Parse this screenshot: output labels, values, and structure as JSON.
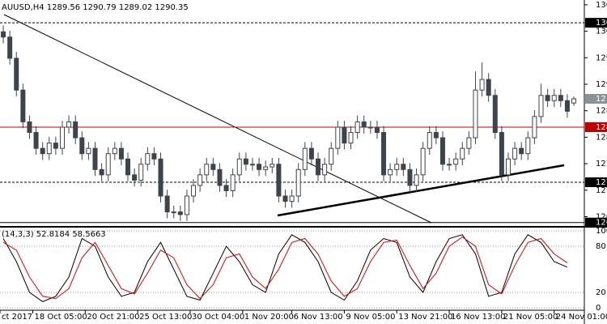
{
  "chart_data": {
    "type": "candlestick",
    "title": "AUUSD,H4  1289.56 1290.79 1289.02 1290.35",
    "open": [
      1303,
      1302,
      1298,
      1292,
      1286,
      1284,
      1281,
      1280,
      1282,
      1281,
      1285,
      1286,
      1283,
      1280,
      1281,
      1277,
      1276,
      1280,
      1281,
      1279,
      1276,
      1275,
      1278,
      1280,
      1279,
      1272,
      1269,
      1269,
      1268.5,
      1272,
      1274,
      1276,
      1278,
      1277,
      1274,
      1273,
      1276,
      1279,
      1278,
      1278,
      1277,
      1277.5,
      1278,
      1272,
      1271,
      1272,
      1277,
      1281,
      1279,
      1276,
      1278,
      1281,
      1285,
      1282,
      1284,
      1286,
      1285,
      1285,
      1284,
      1276,
      1277,
      1278,
      1277,
      1274,
      1276,
      1281,
      1284,
      1283,
      1278,
      1278,
      1279,
      1281,
      1283,
      1292,
      1294,
      1291,
      1284,
      1276,
      1279,
      1281,
      1280,
      1283,
      1287,
      1291,
      1290,
      1291,
      1290,
      1289.56
    ],
    "high": [
      1304.2,
      1303.2,
      1299.2,
      1293.2,
      1287.2,
      1285.2,
      1282.2,
      1283.2,
      1283.2,
      1286.2,
      1287.2,
      1287.2,
      1284.2,
      1282.2,
      1282.2,
      1278.2,
      1281.2,
      1282.2,
      1282.2,
      1280.2,
      1277.2,
      1279.2,
      1281.2,
      1281.2,
      1280.2,
      1273.2,
      1270.2,
      1270.2,
      1273.2,
      1275.2,
      1277.2,
      1279.2,
      1279.2,
      1278.2,
      1275.2,
      1277.2,
      1280.2,
      1280.2,
      1279.2,
      1279.2,
      1278.7,
      1279.2,
      1279.2,
      1273.2,
      1273.2,
      1278.2,
      1282.2,
      1282.2,
      1280.2,
      1279.2,
      1282.2,
      1286.2,
      1286.2,
      1285.2,
      1287.2,
      1287.2,
      1286.2,
      1286.2,
      1285.2,
      1278.2,
      1279.2,
      1279.2,
      1278.2,
      1277.2,
      1282.2,
      1285.2,
      1285.2,
      1284.2,
      1279.2,
      1280.2,
      1282.2,
      1284.2,
      1295.5,
      1297.2,
      1295.2,
      1292.2,
      1285.2,
      1280.2,
      1282.2,
      1282.2,
      1284.2,
      1288.2,
      1293.2,
      1292.2,
      1292.2,
      1292.2,
      1291.2,
      1290.79
    ],
    "low": [
      1300.8,
      1296.8,
      1290.8,
      1284.8,
      1282.8,
      1279.8,
      1278.8,
      1278.8,
      1279.8,
      1279.8,
      1283.8,
      1281.8,
      1278.8,
      1278.8,
      1275.8,
      1274.8,
      1274.8,
      1278.8,
      1277.8,
      1274.8,
      1273.8,
      1273.8,
      1276.8,
      1277.8,
      1270.8,
      1267.8,
      1267.8,
      1267.3,
      1267.3,
      1270.8,
      1272.8,
      1274.8,
      1275.8,
      1272.8,
      1271.8,
      1271.8,
      1274.8,
      1276.8,
      1276.8,
      1275.8,
      1275.8,
      1276.3,
      1270.8,
      1269.8,
      1269.8,
      1270.8,
      1275.8,
      1277.8,
      1274.8,
      1274.8,
      1276.8,
      1279.8,
      1280.8,
      1280.8,
      1282.8,
      1283.8,
      1283.8,
      1282.8,
      1274.8,
      1274.8,
      1275.8,
      1275.8,
      1272.8,
      1272.8,
      1274.8,
      1279.8,
      1281.8,
      1276.8,
      1276.8,
      1276.8,
      1277.8,
      1279.8,
      1281.8,
      1290.8,
      1289.8,
      1282.8,
      1274.8,
      1274.8,
      1277.8,
      1278.8,
      1278.8,
      1281.8,
      1285.8,
      1288.8,
      1288.8,
      1288.8,
      1286.8,
      1289.02
    ],
    "close": [
      1302,
      1298,
      1292,
      1286,
      1284,
      1281,
      1280,
      1282,
      1281,
      1285,
      1286,
      1283,
      1280,
      1281,
      1277,
      1276,
      1280,
      1281,
      1279,
      1276,
      1275,
      1278,
      1280,
      1279,
      1272,
      1269,
      1269,
      1268.5,
      1272,
      1274,
      1276,
      1278,
      1277,
      1274,
      1273,
      1276,
      1279,
      1278,
      1278,
      1277,
      1277.5,
      1278,
      1272,
      1271,
      1272,
      1277,
      1281,
      1279,
      1276,
      1278,
      1281,
      1285,
      1282,
      1284,
      1286,
      1285,
      1285,
      1284,
      1276,
      1277,
      1278,
      1277,
      1274,
      1276,
      1281,
      1284,
      1283,
      1278,
      1278,
      1279,
      1281,
      1283,
      1292,
      1294,
      1291,
      1284,
      1276,
      1279,
      1281,
      1280,
      1283,
      1287,
      1291,
      1290,
      1291,
      1290,
      1288,
      1290.35
    ],
    "up_color": "#ffffff",
    "down_color": "#3d444b",
    "xlim": [
      -0.5,
      88.6
    ],
    "xticks": [
      {
        "value": -0.5,
        "label": "ct 2017"
      },
      {
        "value": 4.5,
        "label": "18 Oct 05:00"
      },
      {
        "value": 12.5,
        "label": "20 Oct 21:00"
      },
      {
        "value": 20.5,
        "label": "25 Oct 13:00"
      },
      {
        "value": 28.5,
        "label": "30 Oct 04:00"
      },
      {
        "value": 36.5,
        "label": "1 Nov 20:00"
      },
      {
        "value": 44,
        "label": "6 Nov 13:00"
      },
      {
        "value": 52,
        "label": "9 Nov 05:00"
      },
      {
        "value": 60,
        "label": "13 Nov 21:00"
      },
      {
        "value": 68,
        "label": "16 Nov 13:00"
      },
      {
        "value": 76,
        "label": "21 Nov 05:00"
      },
      {
        "value": 84,
        "label": "24 Nov 01:00"
      }
    ],
    "ylim": [
      1266.5,
      1309.0
    ],
    "yticks": [
      {
        "value": 1308.1,
        "label": "130"
      },
      {
        "value": 1303.1,
        "label": "130"
      },
      {
        "value": 1298.1,
        "label": "129"
      },
      {
        "value": 1293.1,
        "label": "129"
      },
      {
        "value": 1288.1,
        "label": "128"
      },
      {
        "value": 1283.1,
        "label": "128"
      },
      {
        "value": 1278.1,
        "label": "127"
      },
      {
        "value": 1273.1,
        "label": "127"
      },
      {
        "value": 1268.1,
        "label": "126"
      }
    ],
    "levels": [
      {
        "value": 1304.7,
        "label": "130",
        "color": "#000000",
        "dash": true
      },
      {
        "value": 1285.0,
        "label": "128",
        "color": "#c00000",
        "dash": false
      },
      {
        "value": 1274.6,
        "label": "127",
        "color": "#000000",
        "dash": true
      },
      {
        "value": 1267.0,
        "label": "126",
        "color": "#000000",
        "dash": false
      }
    ],
    "last_price_label": "12",
    "indicator": {
      "type": "line",
      "label": "(14,3,3) 52.8184 58.5663",
      "xlim": [
        -0.25,
        44.3
      ],
      "ylim": [
        0,
        100
      ],
      "yticks": [
        100,
        80,
        20,
        0
      ],
      "series": [
        {
          "color": "#000000",
          "values": [
            90,
            60,
            20,
            8,
            15,
            40,
            90,
            80,
            40,
            15,
            20,
            60,
            85,
            50,
            15,
            10,
            45,
            80,
            60,
            30,
            20,
            70,
            95,
            85,
            60,
            20,
            10,
            35,
            75,
            90,
            85,
            40,
            20,
            60,
            90,
            95,
            70,
            15,
            20,
            70,
            95,
            85,
            60,
            52.8184
          ]
        },
        {
          "color": "#e00000",
          "values": [
            85,
            75,
            40,
            15,
            12,
            25,
            65,
            85,
            55,
            25,
            18,
            45,
            75,
            65,
            30,
            12,
            30,
            65,
            70,
            40,
            25,
            50,
            85,
            90,
            70,
            35,
            15,
            25,
            60,
            85,
            88,
            55,
            25,
            45,
            80,
            92,
            80,
            30,
            18,
            55,
            85,
            90,
            70,
            58.5663
          ]
        }
      ]
    }
  }
}
